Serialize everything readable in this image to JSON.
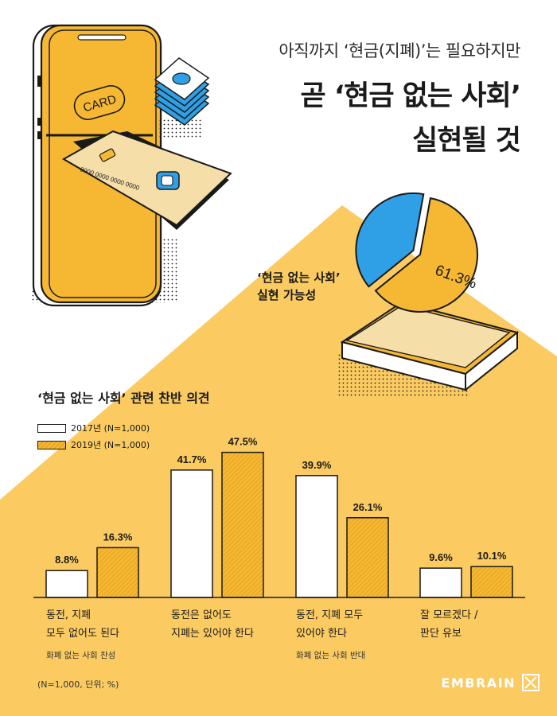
{
  "headline": {
    "line1": "아직까지 ‘현금(지폐)’는 필요하지만",
    "line2": "곧 ‘현금 없는 사회’",
    "line3": "실현될 것"
  },
  "illustration": {
    "card_text": "CARD",
    "card_number": "0000 0000 0000 0000"
  },
  "pie": {
    "caption_line1": "‘현금 없는 사회’",
    "caption_line2": "실현 가능성",
    "value_label": "61.3%",
    "value": 61.3
  },
  "opinion_title": "‘현금 없는 사회’ 관련 찬반 의견",
  "legend": [
    {
      "label": "2017년 (N=1,000)"
    },
    {
      "label": "2019년 (N=1,000)"
    }
  ],
  "chart_data": {
    "type": "bar",
    "categories": [
      "동전, 지폐 모두 없어도 된다",
      "동전은 없어도 지폐는 있어야 한다",
      "동전, 지폐 모두 있어야 한다",
      "잘 모르겠다 / 판단 유보"
    ],
    "category_lines": [
      [
        "동전, 지폐",
        "모두 없어도 된다"
      ],
      [
        "동전은 없어도",
        "지폐는 있어야 한다"
      ],
      [
        "동전, 지폐 모두",
        "있어야 한다"
      ],
      [
        "잘 모르겠다 /",
        "판단 유보"
      ]
    ],
    "category_subs": [
      "화폐 없는 사회 찬성",
      "",
      "화폐 없는 사회 반대",
      ""
    ],
    "series": [
      {
        "name": "2017년 (N=1,000)",
        "values": [
          8.8,
          41.7,
          39.9,
          9.6
        ],
        "labels": [
          "8.8%",
          "41.7%",
          "39.9%",
          "9.6%"
        ]
      },
      {
        "name": "2019년 (N=1,000)",
        "values": [
          16.3,
          47.5,
          26.1,
          10.1
        ],
        "labels": [
          "16.3%",
          "47.5%",
          "26.1%",
          "10.1%"
        ]
      }
    ],
    "title": "‘현금 없는 사회’ 관련 찬반 의견",
    "ylim": [
      0,
      50
    ],
    "grid": false,
    "legend_position": "top-left"
  },
  "footnote": "(N=1,000, 단위; %)",
  "brand": "EMBRAIN",
  "colors": {
    "background_yellow": "#fbcb62",
    "accent_orange": "#f6b832",
    "accent_blue": "#2f9fe6",
    "outline": "#1a1a1a",
    "card_beige": "#f6dea8"
  }
}
